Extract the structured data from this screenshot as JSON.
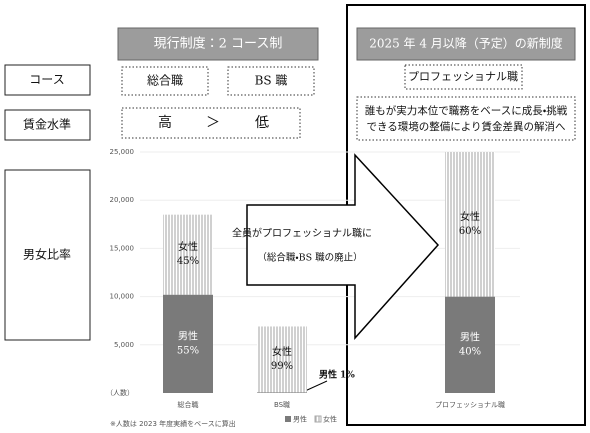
{
  "left_header": "現行制度：2 コース制",
  "right_header": "2025 年 4 月以降（予定）の新制度",
  "rows": [
    {
      "label": "コース"
    },
    {
      "label": "賃金水準"
    },
    {
      "label": "男女比率"
    }
  ],
  "current_courses": [
    "総合職",
    "BS 職"
  ],
  "new_course": "プロフェッショナル職",
  "wage_level": [
    "高",
    "＞",
    "低"
  ],
  "new_wage_note": [
    "誰もが実力本位で職務をベースに成長・挑戦",
    "できる環境の整備により賃金差異の解消へ"
  ],
  "arrow": [
    "全員がプロフェッショナル職に",
    "（総合職・BS 職の廃止）"
  ],
  "chart_data": {
    "type": "bar",
    "stacked": true,
    "categories": [
      "総合職",
      "BS職",
      "プロフェッショナル職"
    ],
    "y_label": "（人数）",
    "series": [
      {
        "name": "男性",
        "color": "#7a7a7a",
        "values": [
          10200,
          70,
          10000
        ],
        "shares": [
          "55%",
          "1%",
          "40%"
        ]
      },
      {
        "name": "女性",
        "color": "#bdbdbd",
        "values": [
          8300,
          6830,
          15000
        ],
        "shares": [
          "45%",
          "99%",
          "60%"
        ]
      }
    ],
    "ylim": [
      0,
      25000
    ],
    "yticks": [
      {
        "value": 5000,
        "label": "5,000"
      },
      {
        "value": 10000,
        "label": "10,000"
      },
      {
        "value": 15000,
        "label": "15,000"
      },
      {
        "value": 20000,
        "label": "20,000"
      },
      {
        "value": 25000,
        "label": "25,000"
      }
    ],
    "grid": true,
    "legend": "bottom",
    "note": "※人数は 2023 年度実績をベースに算出"
  }
}
